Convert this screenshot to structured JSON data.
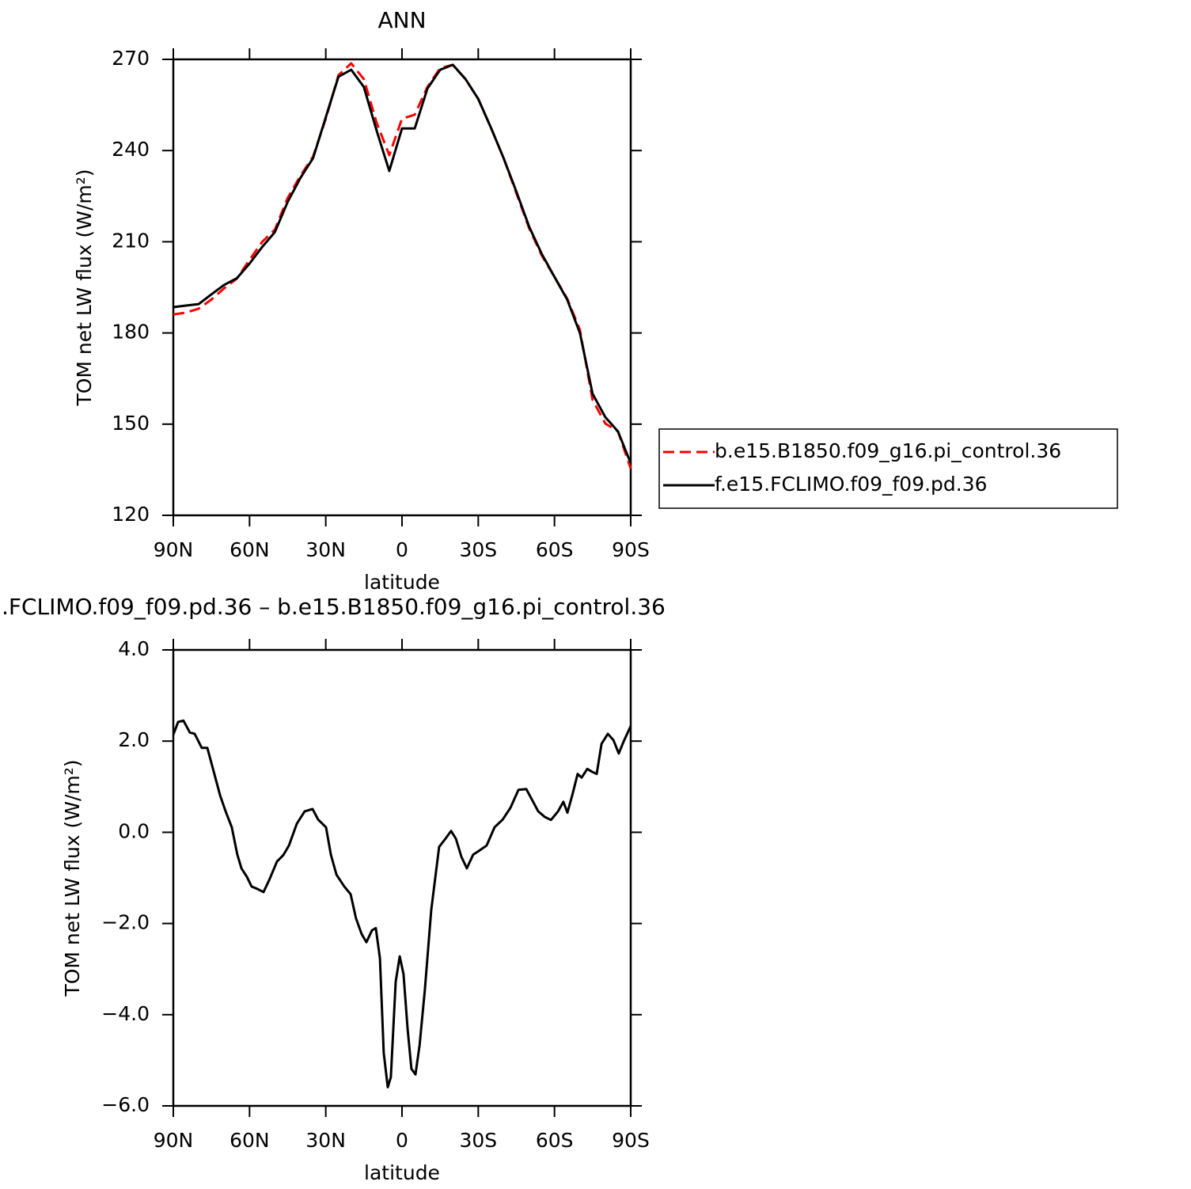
{
  "chart_data": [
    {
      "type": "line",
      "title": "ANN",
      "xlabel": "latitude",
      "ylabel": "TOM net LW flux (W/m²)",
      "x": [
        90,
        85,
        80,
        75,
        70,
        65,
        60,
        55,
        50,
        45,
        40,
        35,
        30,
        25,
        20,
        15,
        10,
        5,
        0,
        -5,
        -10,
        -15,
        -20,
        -25,
        -30,
        -35,
        -40,
        -45,
        -50,
        -55,
        -60,
        -65,
        -70,
        -75,
        -80,
        -85,
        -90
      ],
      "series": [
        {
          "name": "b.e15.B1850.f09_g16.pi_control.36",
          "color": "#ff0000",
          "dashed": true,
          "values": [
            186.1,
            186.7,
            188,
            191,
            194.7,
            197.9,
            204,
            210,
            214,
            224.4,
            231.7,
            238,
            250.5,
            264.8,
            268.7,
            263.5,
            249.2,
            238.5,
            250.5,
            251.8,
            260.9,
            267.1,
            268.2,
            263.5,
            257,
            247.5,
            237.5,
            226,
            214.5,
            205.5,
            198.4,
            191.3,
            181,
            158,
            150.2,
            147.6,
            135.4
          ]
        },
        {
          "name": "f.e15.FCLIMO.f09_f09.pd.36",
          "color": "#000000",
          "dashed": false,
          "values": [
            188.5,
            189,
            189.5,
            192.7,
            195.8,
            198,
            202.8,
            208.3,
            213.2,
            223.1,
            231,
            237.5,
            251,
            264.3,
            266.6,
            260.9,
            246.6,
            233.3,
            247.3,
            247.3,
            260.4,
            266.6,
            268.2,
            263.5,
            257,
            247.5,
            237.5,
            226.5,
            215,
            206,
            198.4,
            191,
            180,
            160,
            152.3,
            147.6,
            137.2
          ]
        }
      ],
      "xlim": [
        90,
        -90
      ],
      "xticks": [
        {
          "value": 90,
          "label": "90N"
        },
        {
          "value": 60,
          "label": "60N"
        },
        {
          "value": 30,
          "label": "30N"
        },
        0,
        {
          "value": -30,
          "label": "30S"
        },
        {
          "value": -60,
          "label": "60S"
        },
        {
          "value": -90,
          "label": "90S"
        }
      ],
      "ylim": [
        120,
        270
      ],
      "yticks": [
        120,
        150,
        180,
        210,
        240,
        270
      ],
      "legend": "right"
    },
    {
      "type": "line",
      "title": ".FCLIMO.f09_f09.pd.36 – b.e15.B1850.f09_g16.pi_control.36",
      "xlabel": "latitude",
      "ylabel": "TOM net LW flux (W/m²)",
      "x": [
        90,
        88.1,
        86,
        83.5,
        81.6,
        78.8,
        76.6,
        74.1,
        71.6,
        69.4,
        67,
        64.8,
        63.2,
        61,
        59.2,
        57,
        54.5,
        52.3,
        49.2,
        46.7,
        44.5,
        41.4,
        38.3,
        35.2,
        33,
        29.9,
        28,
        25.8,
        22.7,
        20.2,
        18.1,
        15.9,
        14,
        11.8,
        10.3,
        8.7,
        7.2,
        5.6,
        4.4,
        2.5,
        0.9,
        -0.6,
        -2.2,
        -3.7,
        -5.3,
        -6.9,
        -9,
        -11.5,
        -14.6,
        -17.1,
        -19.3,
        -21.2,
        -23.4,
        -25.5,
        -28,
        -30.2,
        -33.3,
        -36.4,
        -39.6,
        -42.7,
        -45.8,
        -48.9,
        -51.1,
        -53.6,
        -56.1,
        -58.6,
        -61.4,
        -63.5,
        -65.1,
        -67,
        -69.1,
        -70.7,
        -72.9,
        -74.7,
        -76.6,
        -78.5,
        -81,
        -83.2,
        -85.3,
        -87.2,
        -90
      ],
      "color": "#000000",
      "values": [
        2.14,
        2.42,
        2.45,
        2.19,
        2.16,
        1.85,
        1.85,
        1.33,
        0.81,
        0.46,
        0.11,
        -0.49,
        -0.79,
        -0.98,
        -1.19,
        -1.24,
        -1.31,
        -1.05,
        -0.64,
        -0.5,
        -0.29,
        0.19,
        0.46,
        0.51,
        0.28,
        0.11,
        -0.49,
        -0.93,
        -1.19,
        -1.36,
        -1.89,
        -2.23,
        -2.41,
        -2.15,
        -2.1,
        -2.76,
        -4.84,
        -5.59,
        -5.37,
        -3.28,
        -2.72,
        -3.11,
        -4.32,
        -5.19,
        -5.31,
        -4.67,
        -3.45,
        -1.71,
        -0.32,
        -0.14,
        0.03,
        -0.14,
        -0.54,
        -0.79,
        -0.49,
        -0.41,
        -0.29,
        0.11,
        0.28,
        0.54,
        0.93,
        0.95,
        0.72,
        0.46,
        0.34,
        0.27,
        0.46,
        0.67,
        0.43,
        0.81,
        1.28,
        1.2,
        1.39,
        1.33,
        1.28,
        1.94,
        2.16,
        2.02,
        1.73,
        1.99,
        2.33
      ],
      "xlim": [
        90,
        -90
      ],
      "xticks": [
        {
          "value": 90,
          "label": "90N"
        },
        {
          "value": 60,
          "label": "60N"
        },
        {
          "value": 30,
          "label": "30N"
        },
        0,
        {
          "value": -30,
          "label": "30S"
        },
        {
          "value": -60,
          "label": "60S"
        },
        {
          "value": -90,
          "label": "90S"
        }
      ],
      "ylim": [
        -6,
        4
      ],
      "yticks": [
        {
          "value": -6,
          "label": "−6.0"
        },
        {
          "value": -4,
          "label": "−4.0"
        },
        {
          "value": -2,
          "label": "−2.0"
        },
        {
          "value": 0,
          "label": "0.0"
        },
        {
          "value": 2,
          "label": "2.0"
        },
        {
          "value": 4,
          "label": "4.0"
        }
      ]
    }
  ]
}
